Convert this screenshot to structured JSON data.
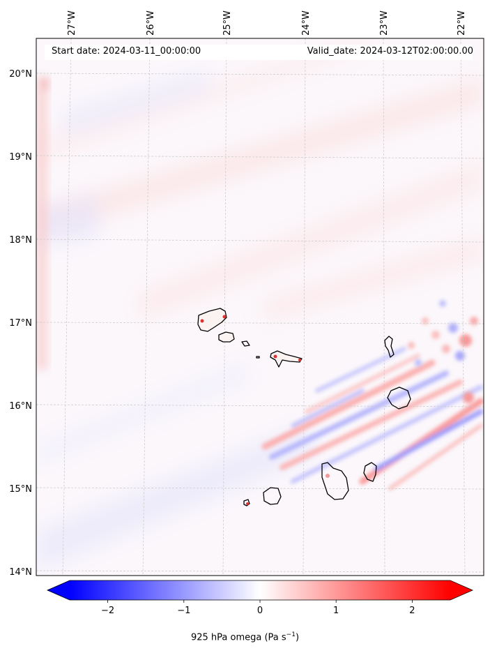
{
  "map": {
    "start_date": "Start date: 2024-03-11_00:00:00",
    "valid_date": "Valid_date: 2024-03-12T02:00:00.00",
    "lon_ticks": [
      "27°W",
      "26°W",
      "25°W",
      "24°W",
      "23°W",
      "22°W"
    ],
    "lat_ticks": [
      "20°N",
      "19°N",
      "18°N",
      "17°N",
      "16°N",
      "15°N",
      "14°N"
    ],
    "extent": {
      "lon_min": -27.35,
      "lon_max": -21.8,
      "lat_min": 14.0,
      "lat_max": 20.3
    },
    "field": "925 hPa omega",
    "islands": [
      "Santo Antão",
      "São Vicente",
      "Santa Luzia",
      "São Nicolau",
      "Sal",
      "Boa Vista",
      "Maio",
      "Santiago",
      "Fogo",
      "Brava"
    ]
  },
  "colorbar": {
    "label_prefix": "925 hPa omega (Pa s",
    "label_exponent": "−1",
    "label_suffix": ")",
    "ticks": [
      "−2",
      "−1",
      "0",
      "1",
      "2"
    ],
    "tick_values": [
      -2,
      -1,
      0,
      1,
      2
    ],
    "range": [
      -2.5,
      2.5
    ],
    "extend": "both",
    "colormap": "bwr",
    "color_min": "#0000ff",
    "color_mid": "#ffffff",
    "color_max": "#ff0000"
  }
}
